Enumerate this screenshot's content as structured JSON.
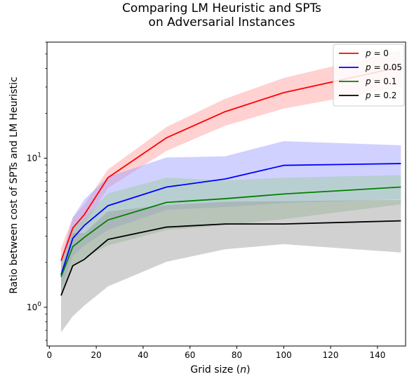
{
  "chart_data": {
    "type": "line",
    "title_lines": [
      "Comparing LM Heuristic and SPTs",
      "on Adversarial Instances"
    ],
    "xlabel_text": "Grid size (",
    "xlabel_var": "n",
    "xlabel_close": ")",
    "ylabel": "Ratio between cost of SPTs and LM Heuristic",
    "x_scale": "linear",
    "y_scale": "log",
    "xlim": [
      -1,
      152
    ],
    "ylim": [
      0.55,
      60
    ],
    "x_ticks": [
      0,
      20,
      40,
      60,
      80,
      100,
      120,
      140
    ],
    "x_tick_labels": [
      "0",
      "20",
      "40",
      "60",
      "80",
      "100",
      "120",
      "140"
    ],
    "y_major_ticks": [
      1,
      10
    ],
    "y_tick_labels": [
      {
        "base": "10",
        "exp": "0"
      },
      {
        "base": "10",
        "exp": "1"
      }
    ],
    "y_minor_ticks": [
      0.6,
      0.7,
      0.8,
      0.9,
      2,
      3,
      4,
      5,
      6,
      7,
      8,
      9,
      20,
      30,
      40,
      50,
      60
    ],
    "grid": false,
    "legend_position": "top-right",
    "x": [
      5,
      10,
      15,
      25,
      50,
      75,
      100,
      150
    ],
    "series": [
      {
        "var": "p",
        "eq": " = 0",
        "color": "#ff0000",
        "band_color": "#ff9999",
        "values": [
          2.05,
          3.4,
          4.2,
          7.4,
          13.7,
          20.5,
          27.5,
          41
        ],
        "lower": [
          1.7,
          2.9,
          3.6,
          6.3,
          11.2,
          16.5,
          21.5,
          30
        ],
        "upper": [
          2.5,
          4.0,
          4.9,
          8.4,
          16.2,
          25,
          34.5,
          53
        ]
      },
      {
        "var": "p",
        "eq": " = 0.05",
        "color": "#0000ff",
        "band_color": "#9999ff",
        "values": [
          1.65,
          2.9,
          3.55,
          4.8,
          6.4,
          7.25,
          8.95,
          9.2
        ],
        "lower": [
          1.3,
          2.2,
          2.6,
          3.3,
          4.5,
          4.7,
          5.0,
          5.3
        ],
        "upper": [
          2.1,
          4.0,
          5.3,
          7.5,
          10.1,
          10.3,
          13.0,
          12.2
        ]
      },
      {
        "var": "p",
        "eq": " = 0.1",
        "color": "#008000",
        "band_color": "#99cc99",
        "values": [
          1.6,
          2.55,
          2.95,
          3.85,
          5.05,
          5.35,
          5.75,
          6.4
        ],
        "lower": [
          1.25,
          1.9,
          2.15,
          2.6,
          3.3,
          3.55,
          3.9,
          4.9
        ],
        "upper": [
          2.0,
          3.4,
          4.0,
          5.8,
          7.4,
          7.1,
          7.4,
          7.7
        ]
      },
      {
        "var": "p",
        "eq": " = 0.2",
        "color": "#000000",
        "band_color": "#999999",
        "values": [
          1.2,
          1.9,
          2.1,
          2.85,
          3.45,
          3.62,
          3.62,
          3.8
        ],
        "lower": [
          0.68,
          0.87,
          1.03,
          1.38,
          2.02,
          2.45,
          2.65,
          2.33
        ],
        "upper": [
          1.75,
          3.15,
          3.15,
          4.4,
          4.85,
          5.1,
          5.15,
          5.25
        ]
      }
    ]
  }
}
